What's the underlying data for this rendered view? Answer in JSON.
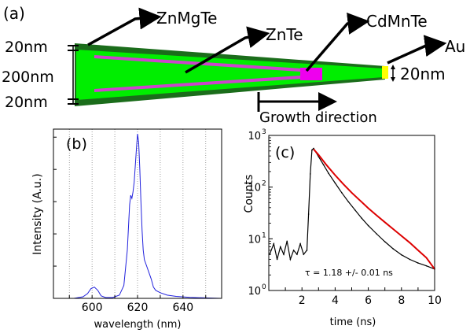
{
  "panel_a": {
    "panel_label": "(a)",
    "labels": {
      "znmgte": "ZnMgTe",
      "znte": "ZnTe",
      "cdmnte": "CdMnTe",
      "au": "Au",
      "thickness_top": "20nm",
      "thickness_core": "200nm",
      "thickness_bottom": "20nm",
      "tip_size": "20nm",
      "growth_direction": "Growth direction"
    },
    "colors": {
      "shell": "#1b6d1b",
      "core": "#00ee00",
      "qd_line": "#cc44cc",
      "qd_box": "#ee00ee",
      "au": "#ffff00"
    }
  },
  "panel_b": {
    "panel_label": "(b)",
    "xlabel": "wavelength (nm)",
    "ylabel": "Intensity (A.u.)",
    "xtick_labels": [
      "600",
      "620",
      "640"
    ],
    "line_color": "#2222dd"
  },
  "panel_c": {
    "panel_label": "(c)",
    "xlabel": "time (ns)",
    "ylabel": "Counts",
    "xtick_labels": [
      "2",
      "4",
      "6",
      "8",
      "10"
    ],
    "ytick_base": "10",
    "ytick_exponents": [
      "0",
      "1",
      "2",
      "3"
    ],
    "annotation": "τ = 1.18 +/- 0.01 ns",
    "data_color": "#000000",
    "fit_color": "#dd0000"
  },
  "chart_data": [
    {
      "type": "line",
      "xlim": [
        583,
        657
      ],
      "ylim": [
        0,
        1.05
      ],
      "yticks_labeled": false,
      "grid": "vertical dotted lines at 590, 600, 610, 620, 630, 640, 650",
      "series": [
        {
          "x": [
            583,
            592,
            596,
            598,
            599.5,
            601,
            602.5,
            604,
            606,
            609,
            612,
            614,
            615.5,
            616.5,
            617,
            617.5,
            618,
            618.5,
            619,
            619.5,
            620,
            620.5,
            621,
            621.5,
            622,
            622.5,
            623,
            624,
            625,
            626,
            627,
            628,
            630,
            633,
            637,
            643,
            650,
            657
          ],
          "y": [
            0.0,
            0.0,
            0.01,
            0.03,
            0.06,
            0.07,
            0.05,
            0.015,
            0.005,
            0.005,
            0.02,
            0.08,
            0.3,
            0.58,
            0.64,
            0.62,
            0.66,
            0.72,
            0.82,
            0.93,
            1.02,
            0.97,
            0.8,
            0.6,
            0.42,
            0.3,
            0.24,
            0.2,
            0.16,
            0.12,
            0.07,
            0.05,
            0.035,
            0.02,
            0.012,
            0.006,
            0.003,
            0.0
          ]
        }
      ]
    },
    {
      "type": "line",
      "xlim": [
        0,
        10
      ],
      "ylim": [
        1,
        1000
      ],
      "yscale": "log",
      "series": [
        {
          "role": "data",
          "x": [
            0.05,
            0.3,
            0.5,
            0.7,
            0.9,
            1.1,
            1.3,
            1.5,
            1.7,
            1.9,
            2.1,
            2.3,
            2.4,
            2.5,
            2.6,
            2.7,
            2.85,
            3.0,
            3.3,
            3.6,
            4.0,
            4.4,
            4.8,
            5.2,
            5.6,
            6.0,
            6.5,
            7.0,
            7.5,
            8.0,
            8.5,
            9.0,
            9.5,
            10.0
          ],
          "y": [
            5,
            8,
            4,
            7,
            5,
            9,
            4,
            6,
            5,
            8,
            5,
            6,
            30,
            180,
            520,
            560,
            470,
            390,
            270,
            185,
            120,
            78,
            52,
            36,
            25,
            18,
            12.5,
            8.8,
            6.4,
            4.9,
            4.0,
            3.4,
            3.0,
            2.6
          ]
        },
        {
          "role": "fit",
          "x": [
            2.7,
            3.0,
            3.5,
            4.0,
            4.5,
            5.0,
            5.5,
            6.0,
            6.5,
            7.0,
            7.5,
            8.0,
            8.5,
            9.0,
            9.5,
            10.0
          ],
          "y": [
            540,
            420,
            262,
            170,
            114,
            78,
            55,
            39,
            28.5,
            20.9,
            15.4,
            11.4,
            8.4,
            6.0,
            4.3,
            2.6
          ]
        }
      ]
    }
  ]
}
